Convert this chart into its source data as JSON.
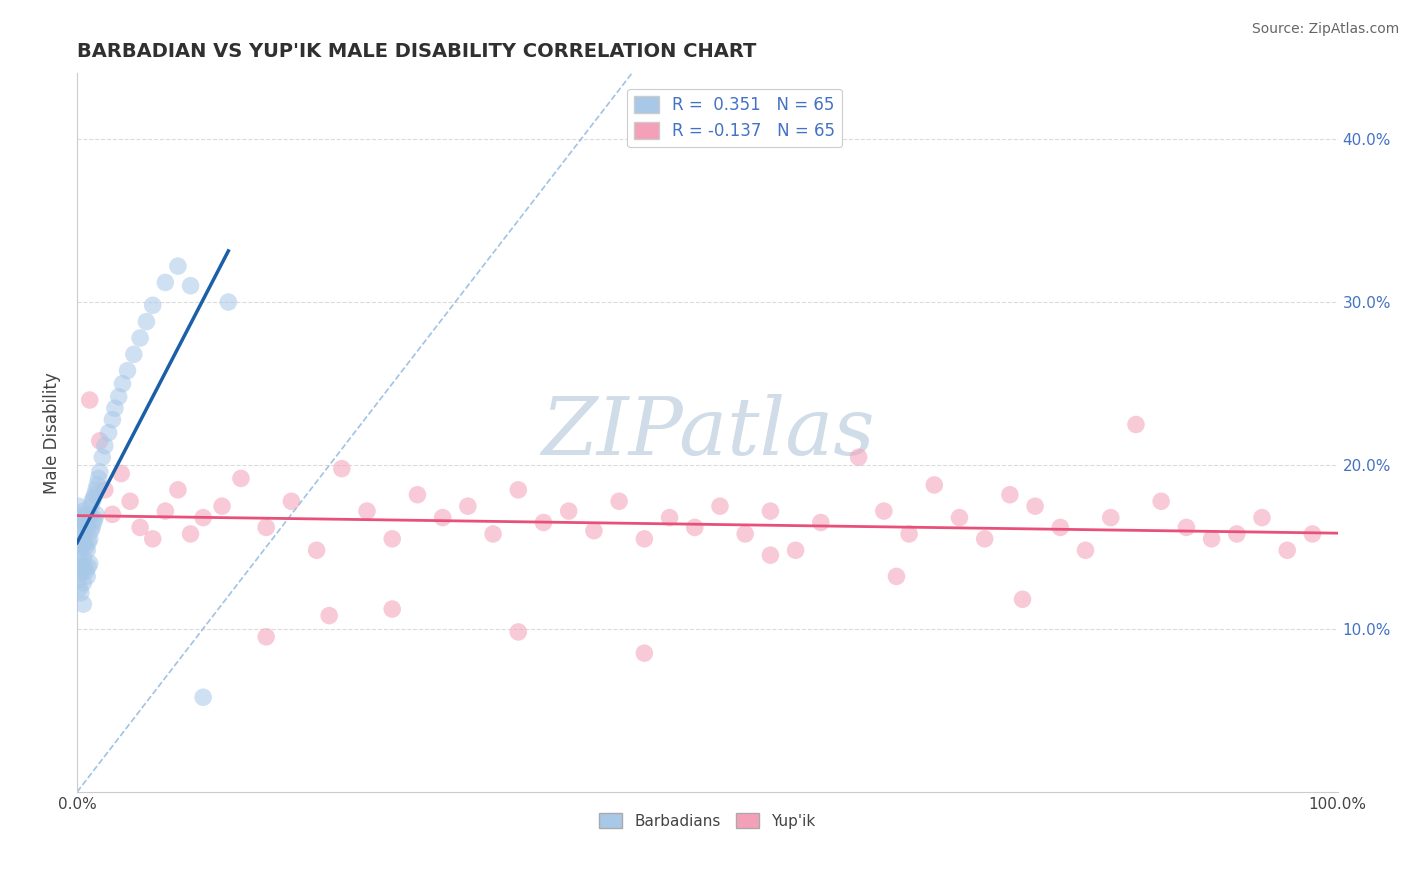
{
  "title": "BARBADIAN VS YUP'IK MALE DISABILITY CORRELATION CHART",
  "source": "Source: ZipAtlas.com",
  "ylabel": "Male Disability",
  "xlim": [
    0.0,
    1.0
  ],
  "ylim": [
    0.0,
    0.44
  ],
  "R_blue": 0.351,
  "R_pink": -0.137,
  "N_blue": 65,
  "N_pink": 65,
  "blue_color": "#a8c8e8",
  "pink_color": "#f4a0b8",
  "blue_line_color": "#1a5fa8",
  "pink_line_color": "#e8507a",
  "dashed_color": "#90b8e0",
  "legend_blue_label": "Barbadians",
  "legend_pink_label": "Yup'ik",
  "watermark_color": "#d0dce8",
  "grid_color": "#d8d8d8",
  "right_tick_color": "#4472c4",
  "title_color": "#303030",
  "source_color": "#666666",
  "blue_x": [
    0.001,
    0.001,
    0.001,
    0.001,
    0.002,
    0.002,
    0.002,
    0.002,
    0.003,
    0.003,
    0.003,
    0.003,
    0.004,
    0.004,
    0.004,
    0.005,
    0.005,
    0.005,
    0.005,
    0.005,
    0.006,
    0.006,
    0.006,
    0.007,
    0.007,
    0.007,
    0.008,
    0.008,
    0.008,
    0.009,
    0.009,
    0.009,
    0.01,
    0.01,
    0.01,
    0.011,
    0.011,
    0.012,
    0.012,
    0.013,
    0.013,
    0.014,
    0.014,
    0.015,
    0.015,
    0.016,
    0.017,
    0.018,
    0.02,
    0.022,
    0.025,
    0.028,
    0.03,
    0.033,
    0.036,
    0.04,
    0.045,
    0.05,
    0.055,
    0.06,
    0.07,
    0.08,
    0.09,
    0.1,
    0.12
  ],
  "blue_y": [
    0.175,
    0.16,
    0.145,
    0.13,
    0.17,
    0.155,
    0.14,
    0.125,
    0.168,
    0.152,
    0.138,
    0.122,
    0.165,
    0.15,
    0.135,
    0.172,
    0.158,
    0.143,
    0.128,
    0.115,
    0.168,
    0.153,
    0.138,
    0.165,
    0.15,
    0.135,
    0.162,
    0.148,
    0.132,
    0.168,
    0.153,
    0.138,
    0.17,
    0.155,
    0.14,
    0.175,
    0.16,
    0.178,
    0.162,
    0.18,
    0.165,
    0.182,
    0.167,
    0.185,
    0.17,
    0.188,
    0.192,
    0.196,
    0.205,
    0.212,
    0.22,
    0.228,
    0.235,
    0.242,
    0.25,
    0.258,
    0.268,
    0.278,
    0.288,
    0.298,
    0.312,
    0.322,
    0.31,
    0.058,
    0.3
  ],
  "pink_x": [
    0.005,
    0.01,
    0.018,
    0.022,
    0.028,
    0.035,
    0.042,
    0.05,
    0.06,
    0.07,
    0.08,
    0.09,
    0.1,
    0.115,
    0.13,
    0.15,
    0.17,
    0.19,
    0.21,
    0.23,
    0.25,
    0.27,
    0.29,
    0.31,
    0.33,
    0.35,
    0.37,
    0.39,
    0.41,
    0.43,
    0.45,
    0.47,
    0.49,
    0.51,
    0.53,
    0.55,
    0.57,
    0.59,
    0.62,
    0.64,
    0.66,
    0.68,
    0.7,
    0.72,
    0.74,
    0.76,
    0.78,
    0.8,
    0.82,
    0.84,
    0.86,
    0.88,
    0.9,
    0.92,
    0.94,
    0.96,
    0.98,
    0.15,
    0.2,
    0.25,
    0.35,
    0.45,
    0.55,
    0.65,
    0.75
  ],
  "pink_y": [
    0.165,
    0.24,
    0.215,
    0.185,
    0.17,
    0.195,
    0.178,
    0.162,
    0.155,
    0.172,
    0.185,
    0.158,
    0.168,
    0.175,
    0.192,
    0.162,
    0.178,
    0.148,
    0.198,
    0.172,
    0.155,
    0.182,
    0.168,
    0.175,
    0.158,
    0.185,
    0.165,
    0.172,
    0.16,
    0.178,
    0.155,
    0.168,
    0.162,
    0.175,
    0.158,
    0.172,
    0.148,
    0.165,
    0.205,
    0.172,
    0.158,
    0.188,
    0.168,
    0.155,
    0.182,
    0.175,
    0.162,
    0.148,
    0.168,
    0.225,
    0.178,
    0.162,
    0.155,
    0.158,
    0.168,
    0.148,
    0.158,
    0.095,
    0.108,
    0.112,
    0.098,
    0.085,
    0.145,
    0.132,
    0.118
  ]
}
